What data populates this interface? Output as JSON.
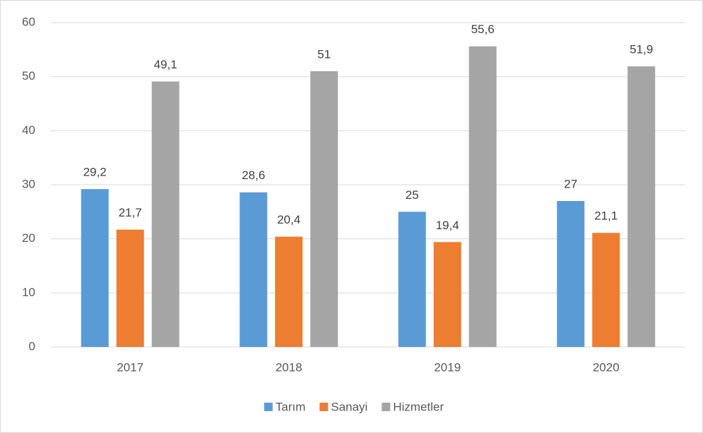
{
  "chart_data": {
    "type": "bar",
    "categories": [
      "2017",
      "2018",
      "2019",
      "2020"
    ],
    "series": [
      {
        "name": "Tarım",
        "color": "#5b9bd5",
        "values": [
          29.2,
          28.6,
          25,
          27
        ],
        "value_labels": [
          "29,2",
          "28,6",
          "25",
          "27"
        ]
      },
      {
        "name": "Sanayi",
        "color": "#ed7d31",
        "values": [
          21.7,
          20.4,
          19.4,
          21.1
        ],
        "value_labels": [
          "21,7",
          "20,4",
          "19,4",
          "21,1"
        ]
      },
      {
        "name": "Hizmetler",
        "color": "#a5a5a5",
        "values": [
          49.1,
          51,
          55.6,
          51.9
        ],
        "value_labels": [
          "49,1",
          "51",
          "55,6",
          "51,9"
        ]
      }
    ],
    "ylim": [
      0,
      60
    ],
    "yticks": [
      0,
      10,
      20,
      30,
      40,
      50,
      60
    ],
    "grid": true,
    "legend": "bottom"
  }
}
